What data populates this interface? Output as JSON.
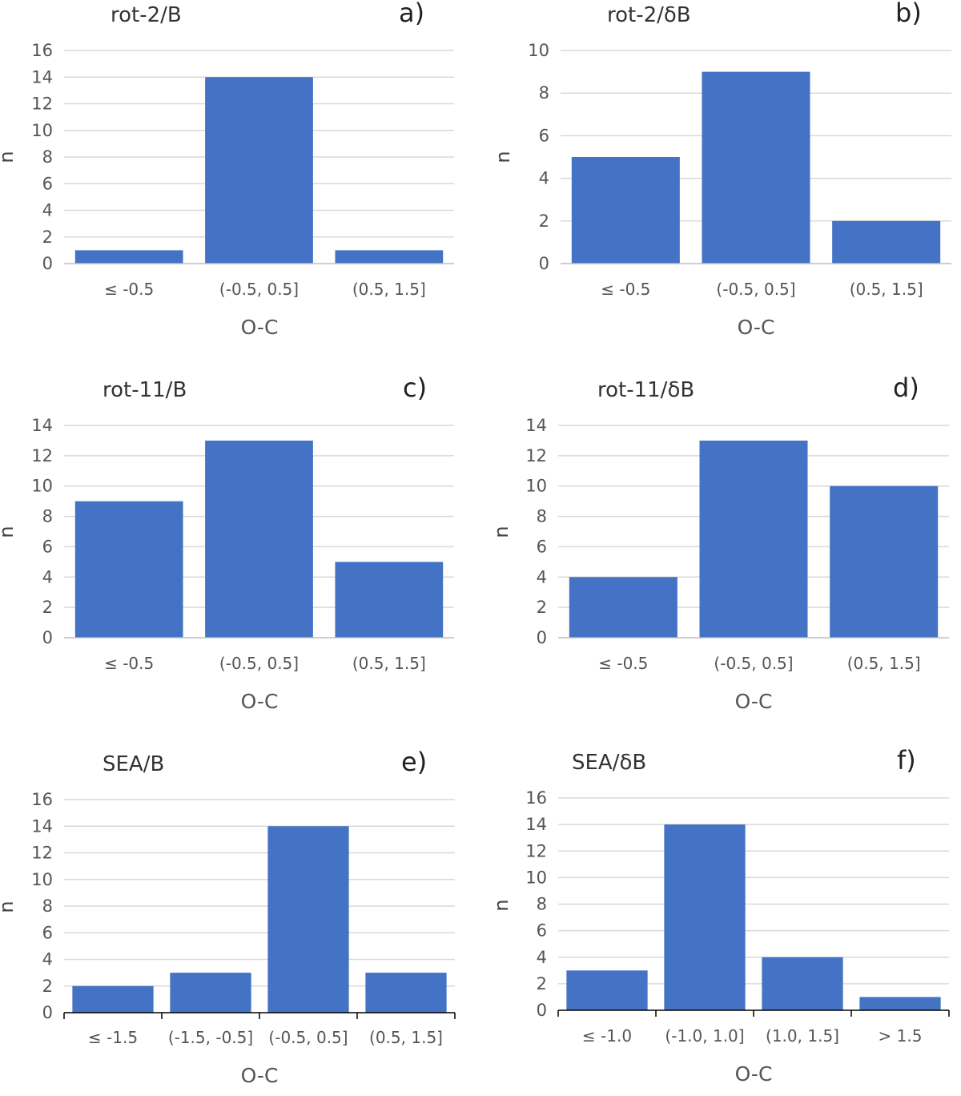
{
  "chart_data": [
    {
      "type": "bar",
      "id": "a",
      "title": "rot-2/B",
      "panel_label": "a)",
      "xlabel": "O-C",
      "ylabel": "n",
      "categories": [
        "≤ -0.5",
        "(-0.5, 0.5]",
        "(0.5, 1.5]"
      ],
      "values": [
        1,
        14,
        1
      ],
      "ylim": [
        0,
        16
      ],
      "yticks": [
        0,
        2,
        4,
        6,
        8,
        10,
        12,
        14,
        16
      ],
      "color": "#4472C4",
      "grid": true
    },
    {
      "type": "bar",
      "id": "b",
      "title": "rot-2/δB",
      "panel_label": "b)",
      "xlabel": "O-C",
      "ylabel": "n",
      "categories": [
        "≤ -0.5",
        "(-0.5, 0.5]",
        "(0.5, 1.5]"
      ],
      "values": [
        5,
        9,
        2
      ],
      "ylim": [
        0,
        10
      ],
      "yticks": [
        0,
        2,
        4,
        6,
        8,
        10
      ],
      "color": "#4472C4",
      "grid": true
    },
    {
      "type": "bar",
      "id": "c",
      "title": "rot-11/B",
      "panel_label": "c)",
      "xlabel": "O-C",
      "ylabel": "n",
      "categories": [
        "≤ -0.5",
        "(-0.5, 0.5]",
        "(0.5, 1.5]"
      ],
      "values": [
        9,
        13,
        5
      ],
      "ylim": [
        0,
        14
      ],
      "yticks": [
        0,
        2,
        4,
        6,
        8,
        10,
        12,
        14
      ],
      "color": "#4472C4",
      "grid": true
    },
    {
      "type": "bar",
      "id": "d",
      "title": "rot-11/δB",
      "panel_label": "d)",
      "xlabel": "O-C",
      "ylabel": "n",
      "categories": [
        "≤ -0.5",
        "(-0.5, 0.5]",
        "(0.5, 1.5]"
      ],
      "values": [
        4,
        13,
        10
      ],
      "ylim": [
        0,
        14
      ],
      "yticks": [
        0,
        2,
        4,
        6,
        8,
        10,
        12,
        14
      ],
      "color": "#4472C4",
      "grid": true
    },
    {
      "type": "bar",
      "id": "e",
      "title": "SEA/B",
      "panel_label": "e)",
      "xlabel": "O-C",
      "ylabel": "n",
      "categories": [
        "≤ -1.5",
        "(-1.5, -0.5]",
        "(-0.5, 0.5]",
        "(0.5, 1.5]"
      ],
      "values": [
        2,
        3,
        14,
        3
      ],
      "ylim": [
        0,
        16
      ],
      "yticks": [
        0,
        2,
        4,
        6,
        8,
        10,
        12,
        14,
        16
      ],
      "color": "#4472C4",
      "grid": true
    },
    {
      "type": "bar",
      "id": "f",
      "title": "SEA/δB",
      "panel_label": "f)",
      "xlabel": "O-C",
      "ylabel": "n",
      "categories": [
        "≤ -1.0",
        "(-1.0, 1.0]",
        "(1.0, 1.5]",
        "> 1.5"
      ],
      "values": [
        3,
        14,
        4,
        1
      ],
      "ylim": [
        0,
        16
      ],
      "yticks": [
        0,
        2,
        4,
        6,
        8,
        10,
        12,
        14,
        16
      ],
      "color": "#4472C4",
      "grid": true
    }
  ]
}
